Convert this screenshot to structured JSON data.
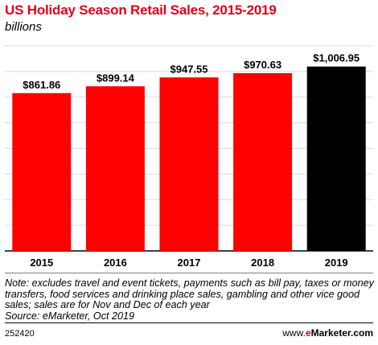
{
  "header": {
    "title": "US Holiday Season Retail Sales, 2015-2019",
    "subtitle": "billions"
  },
  "chart_data": {
    "type": "bar",
    "categories": [
      "2015",
      "2016",
      "2017",
      "2018",
      "2019"
    ],
    "values": [
      861.86,
      899.14,
      947.55,
      970.63,
      1006.95
    ],
    "value_labels": [
      "$861.86",
      "$899.14",
      "$947.55",
      "$970.63",
      "$1,006.95"
    ],
    "title": "US Holiday Season Retail Sales, 2015-2019",
    "ylabel": "",
    "xlabel": "",
    "ylim": [
      0,
      1120
    ],
    "grid": true,
    "colors": [
      "#ff0000",
      "#ff0000",
      "#ff0000",
      "#ff0000",
      "#000000"
    ]
  },
  "footer": {
    "note": "Note: excludes travel and event tickets, payments such as bill pay, taxes or money transfers, food services and drinking place sales, gambling and other vice good sales; sales are for Nov and Dec of each year",
    "source": "Source: eMarketer, Oct 2019",
    "chart_id": "252420",
    "brand_prefix": "www.",
    "brand_e": "e",
    "brand_rest": "Marketer.com"
  }
}
